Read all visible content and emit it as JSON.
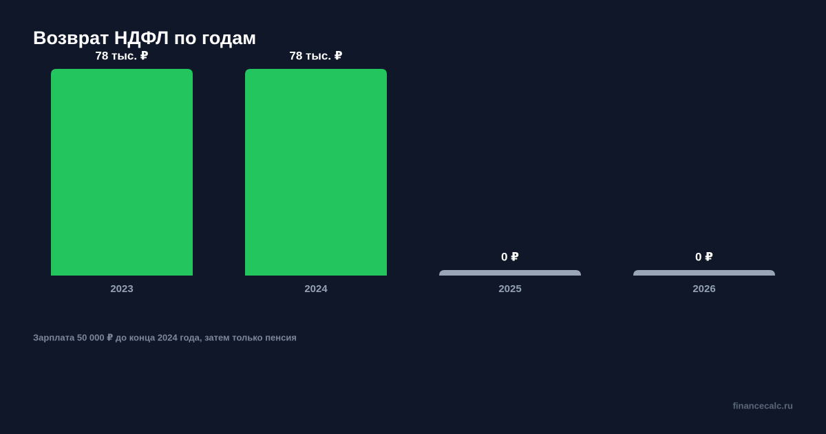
{
  "chart_data": {
    "type": "bar",
    "title": "Возврат НДФЛ по годам",
    "categories": [
      "2023",
      "2024",
      "2025",
      "2026"
    ],
    "values": [
      78000,
      78000,
      0,
      0
    ],
    "value_labels": [
      "78 тыс. ₽",
      "78 тыс. ₽",
      "0 ₽",
      "0 ₽"
    ],
    "colors": [
      "#22c55e",
      "#22c55e",
      "#9aa5b8",
      "#9aa5b8"
    ],
    "note": "Зарплата 50 000 ₽ до конца 2024 года, затем только пенсия",
    "source": "financecalc.ru"
  }
}
